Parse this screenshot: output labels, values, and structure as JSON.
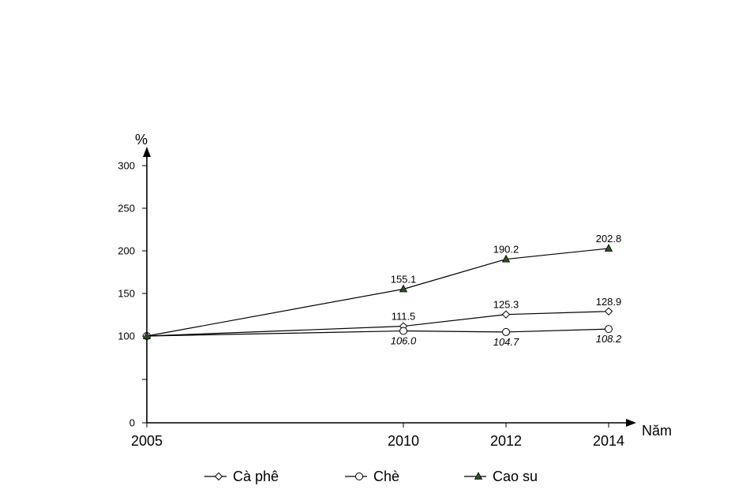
{
  "chart_data": {
    "type": "line",
    "title": "",
    "xlabel": "Năm",
    "ylabel": "%",
    "categories": [
      "2005",
      "2010",
      "2012",
      "2014"
    ],
    "x": [
      2005,
      2010,
      2012,
      2014
    ],
    "xlim": [
      2005,
      2015
    ],
    "ylim": [
      0,
      300
    ],
    "yticks": [
      0,
      100,
      150,
      200,
      250,
      300
    ],
    "series": [
      {
        "name": "Cà phê",
        "marker": "diamond",
        "values": [
          100,
          111.5,
          125.3,
          128.9
        ],
        "labels": [
          "",
          "111.5",
          "125.3",
          "128.9"
        ],
        "label_position": "above",
        "label_style": "normal"
      },
      {
        "name": "Chè",
        "marker": "circle",
        "values": [
          100,
          106.0,
          104.7,
          108.2
        ],
        "labels": [
          "",
          "106.0",
          "104.7",
          "108.2"
        ],
        "label_position": "below",
        "label_style": "italic"
      },
      {
        "name": "Cao su",
        "marker": "triangle",
        "values": [
          100,
          155.1,
          190.2,
          202.8
        ],
        "labels": [
          "",
          "155.1",
          "190.2",
          "202.8"
        ],
        "label_position": "above",
        "label_style": "normal"
      }
    ],
    "legend": "bottom",
    "grid": false
  },
  "colors": {
    "marker_triangle_fill": "#2f4f1f",
    "ink": "#000000"
  }
}
